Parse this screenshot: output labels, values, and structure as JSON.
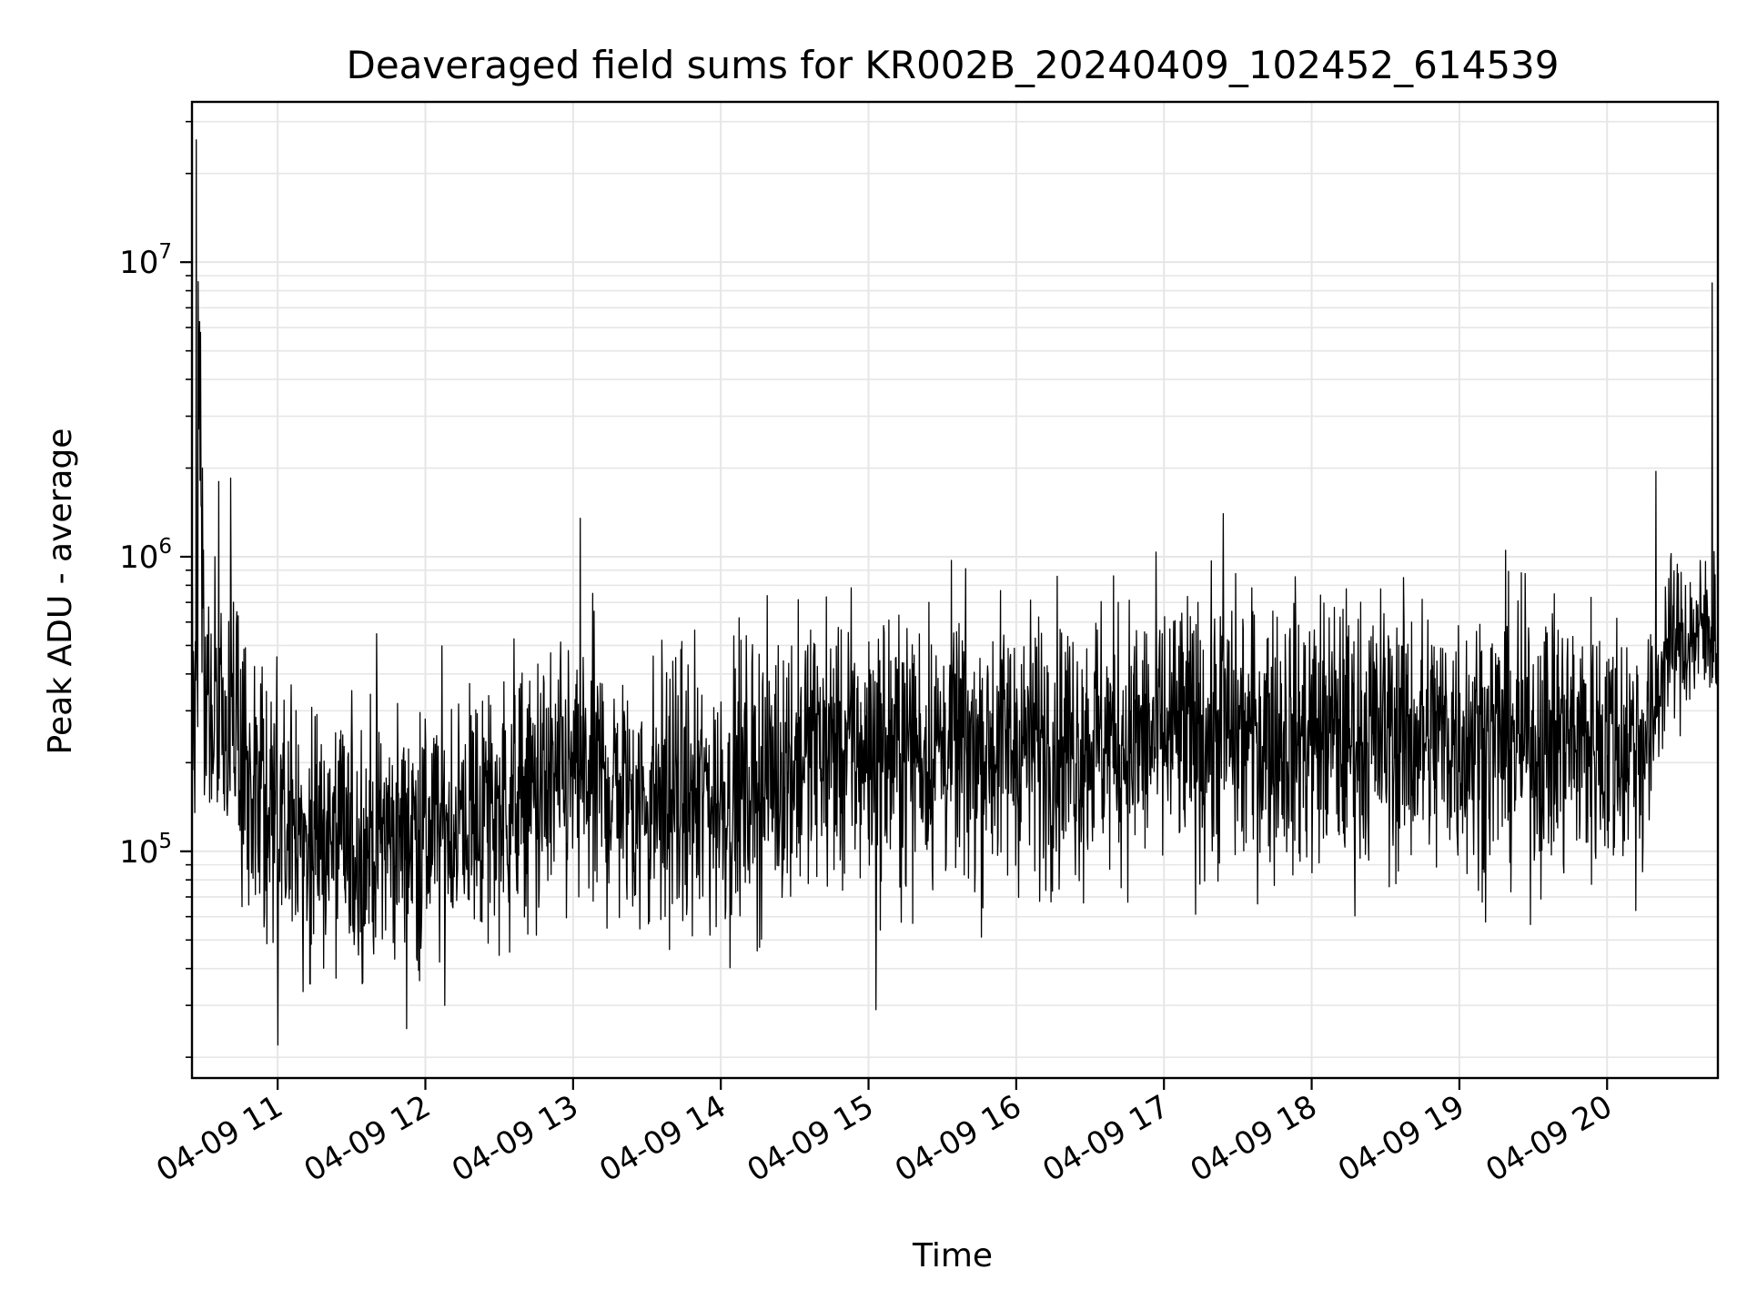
{
  "chart_data": {
    "type": "line",
    "title": "Deaveraged field sums for KR002B_20240409_102452_614539",
    "xlabel": "Time",
    "ylabel": "Peak ADU - average",
    "yscale": "log",
    "ylim": [
      17000,
      35000000
    ],
    "xlim_hours": [
      10.42,
      20.75
    ],
    "grid": true,
    "grid_minor": true,
    "line_color": "#000000",
    "grid_color": "#e6e6e6",
    "x_ticks": [
      {
        "hour": 11,
        "label": "04-09 11"
      },
      {
        "hour": 12,
        "label": "04-09 12"
      },
      {
        "hour": 13,
        "label": "04-09 13"
      },
      {
        "hour": 14,
        "label": "04-09 14"
      },
      {
        "hour": 15,
        "label": "04-09 15"
      },
      {
        "hour": 16,
        "label": "04-09 16"
      },
      {
        "hour": 17,
        "label": "04-09 17"
      },
      {
        "hour": 18,
        "label": "04-09 18"
      },
      {
        "hour": 19,
        "label": "04-09 19"
      },
      {
        "hour": 20,
        "label": "04-09 20"
      }
    ],
    "y_ticks": [
      {
        "value": 100000,
        "base": "10",
        "exp": "5"
      },
      {
        "value": 1000000,
        "base": "10",
        "exp": "6"
      },
      {
        "value": 10000000,
        "base": "10",
        "exp": "7"
      }
    ],
    "series": [
      {
        "x_hours": [
          10.42,
          10.45,
          10.5,
          10.6,
          10.7,
          10.8,
          10.9,
          11.0,
          11.1,
          11.2,
          11.3,
          11.4,
          11.5,
          11.6,
          11.7,
          11.8,
          11.9,
          12.0,
          12.1,
          12.2,
          12.3,
          12.4,
          12.5,
          12.6,
          12.7,
          12.8,
          12.9,
          13.0,
          13.1,
          13.2,
          13.3,
          13.4,
          13.5,
          13.6,
          13.7,
          13.8,
          13.9,
          14.0,
          14.1,
          14.2,
          14.3,
          14.4,
          14.5,
          14.6,
          14.7,
          14.8,
          14.9,
          15.0,
          15.1,
          15.2,
          15.3,
          15.4,
          15.5,
          15.6,
          15.7,
          15.8,
          15.9,
          16.0,
          16.1,
          16.2,
          16.3,
          16.4,
          16.5,
          16.6,
          16.7,
          16.8,
          16.9,
          17.0,
          17.1,
          17.2,
          17.3,
          17.4,
          17.5,
          17.6,
          17.7,
          17.8,
          17.9,
          18.0,
          18.1,
          18.2,
          18.3,
          18.4,
          18.5,
          18.6,
          18.7,
          18.8,
          18.9,
          19.0,
          19.1,
          19.2,
          19.3,
          19.4,
          19.5,
          19.6,
          19.7,
          19.8,
          19.9,
          20.0,
          20.1,
          20.2,
          20.3,
          20.4,
          20.5,
          20.6,
          20.7,
          20.75
        ],
        "values": [
          400000,
          26000000,
          350000,
          300000,
          250000,
          180000,
          140000,
          120000,
          125000,
          115000,
          110000,
          105000,
          100000,
          110000,
          115000,
          110000,
          120000,
          115000,
          120000,
          125000,
          130000,
          135000,
          140000,
          150000,
          155000,
          160000,
          165000,
          175000,
          180000,
          170000,
          160000,
          150000,
          145000,
          150000,
          155000,
          150000,
          150000,
          155000,
          160000,
          170000,
          180000,
          190000,
          210000,
          220000,
          230000,
          220000,
          215000,
          220000,
          215000,
          220000,
          225000,
          220000,
          230000,
          225000,
          220000,
          225000,
          230000,
          235000,
          230000,
          240000,
          235000,
          230000,
          240000,
          245000,
          240000,
          235000,
          240000,
          245000,
          250000,
          245000,
          250000,
          255000,
          250000,
          245000,
          255000,
          250000,
          245000,
          250000,
          255000,
          250000,
          245000,
          250000,
          255000,
          250000,
          245000,
          240000,
          245000,
          250000,
          245000,
          240000,
          245000,
          240000,
          235000,
          240000,
          245000,
          240000,
          235000,
          240000,
          230000,
          235000,
          245000,
          500000,
          520000,
          540000,
          560000,
          580000
        ]
      }
    ],
    "spikes": [
      {
        "hour": 10.45,
        "value": 26000000
      },
      {
        "hour": 10.49,
        "value": 2000000
      },
      {
        "hour": 10.6,
        "value": 1800000
      },
      {
        "hour": 10.68,
        "value": 1850000
      },
      {
        "hour": 11.0,
        "value": 22000
      },
      {
        "hour": 13.05,
        "value": 1350000
      },
      {
        "hour": 15.05,
        "value": 29000
      },
      {
        "hour": 17.4,
        "value": 1400000
      },
      {
        "hour": 20.33,
        "value": 1950000
      },
      {
        "hour": 20.71,
        "value": 8500000
      }
    ]
  }
}
